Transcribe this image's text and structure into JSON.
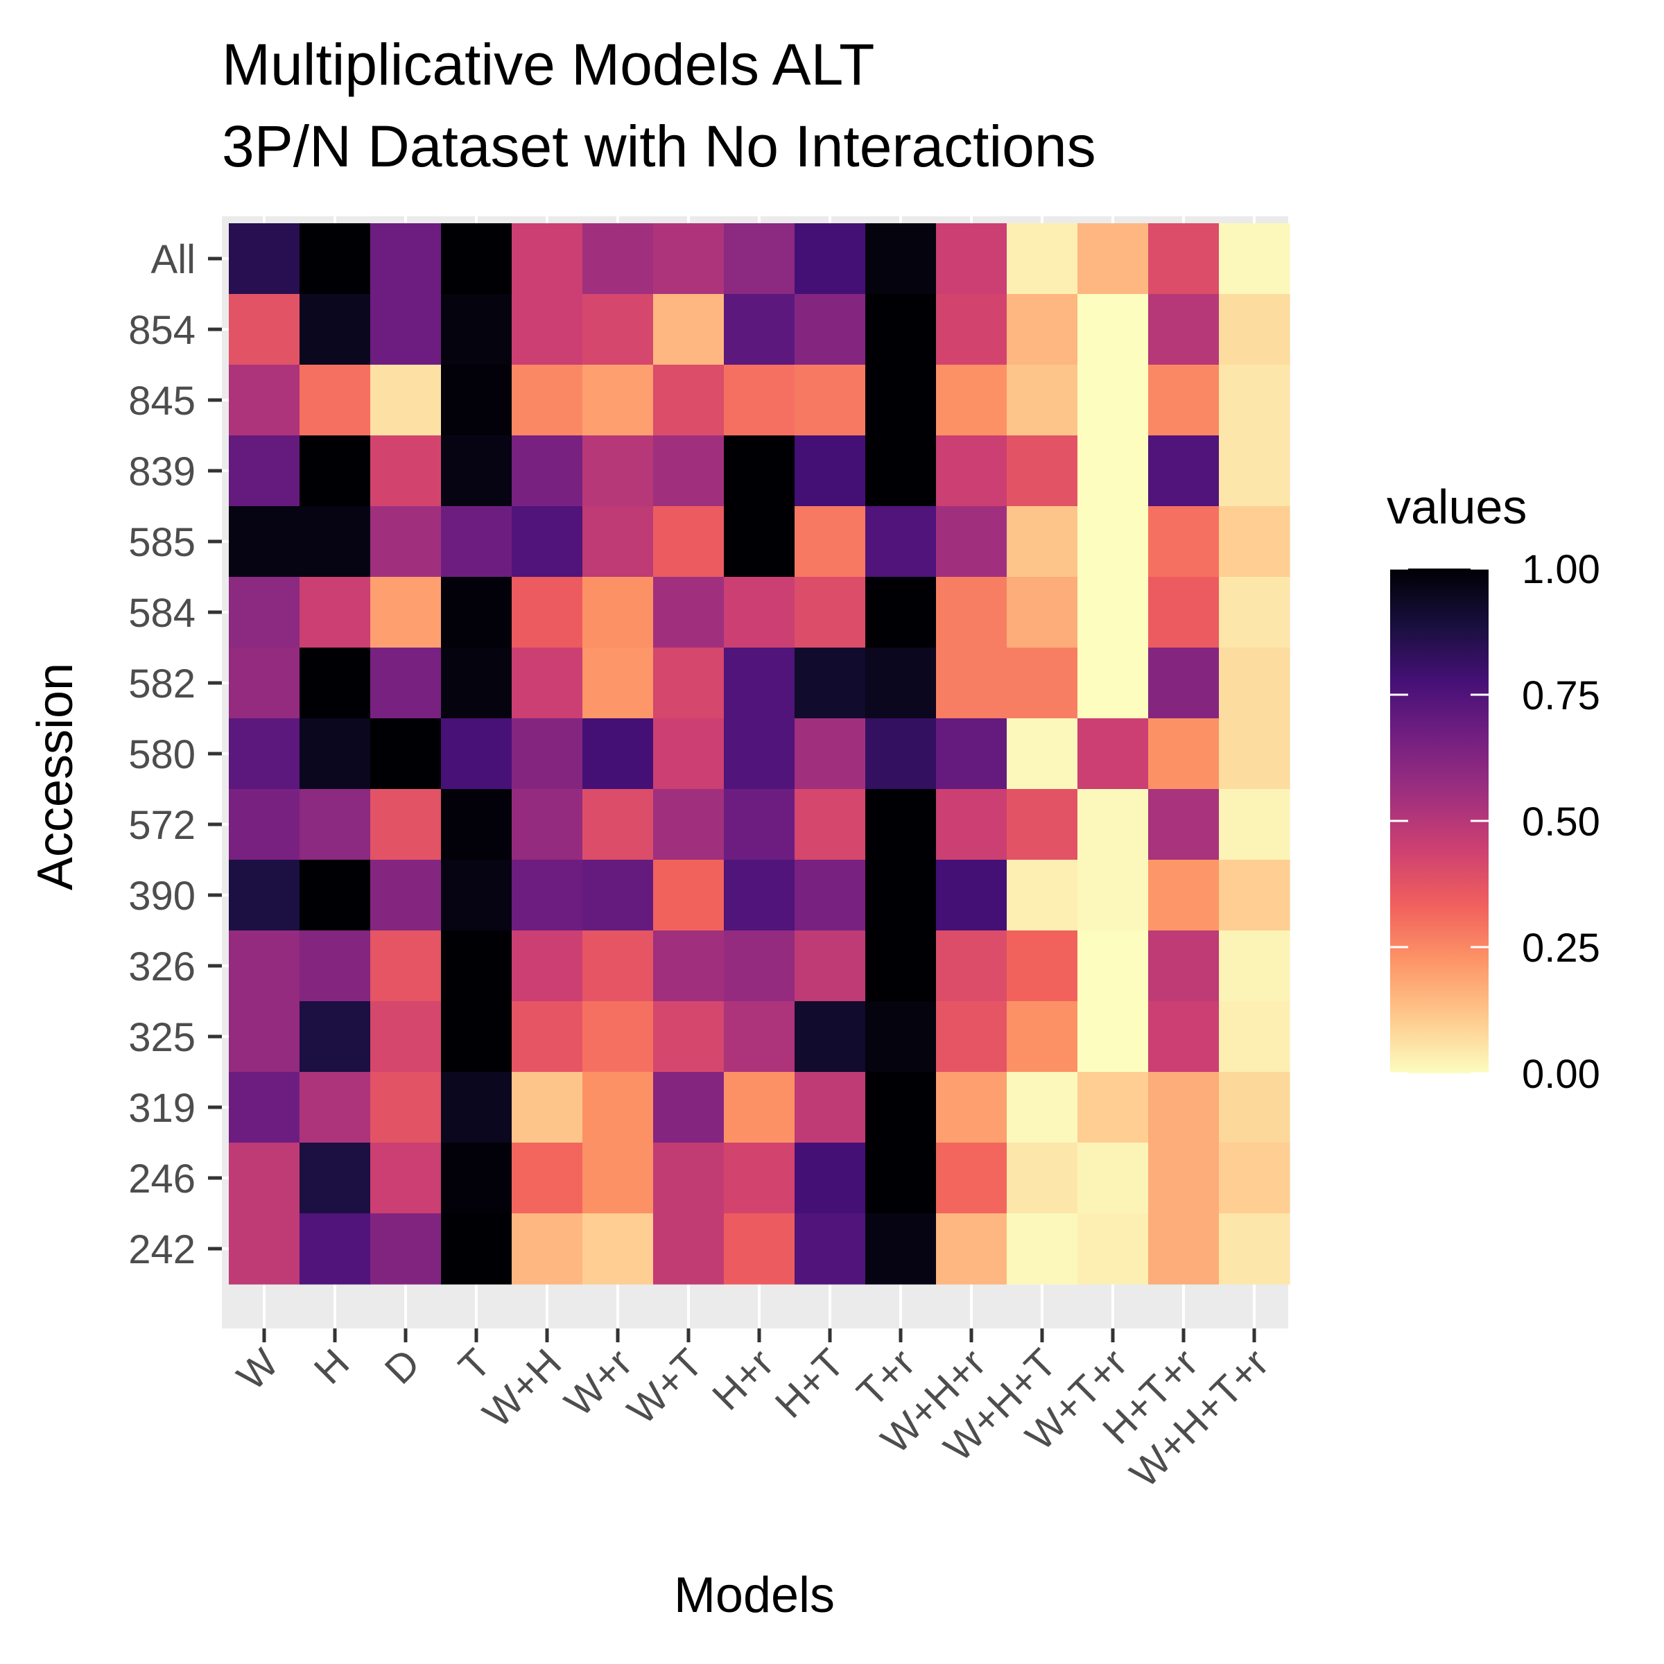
{
  "chart_data": {
    "type": "heatmap",
    "title_lines": [
      "Multiplicative Models ALT",
      "3P/N Dataset with No Interactions"
    ],
    "xlabel": "Models",
    "ylabel": "Accession",
    "x_categories": [
      "W",
      "H",
      "D",
      "T",
      "W+H",
      "W+r",
      "W+T",
      "H+r",
      "H+T",
      "T+r",
      "W+H+r",
      "W+H+T",
      "W+T+r",
      "H+T+r",
      "W+H+T+r"
    ],
    "y_categories": [
      "All",
      "854",
      "845",
      "839",
      "585",
      "584",
      "582",
      "580",
      "572",
      "390",
      "326",
      "325",
      "319",
      "246",
      "242"
    ],
    "values": [
      [
        0.85,
        1.0,
        0.68,
        1.0,
        0.45,
        0.55,
        0.52,
        0.6,
        0.78,
        0.98,
        0.45,
        0.03,
        0.15,
        0.4,
        0.01
      ],
      [
        0.38,
        0.95,
        0.68,
        0.98,
        0.45,
        0.42,
        0.15,
        0.72,
        0.62,
        1.0,
        0.43,
        0.15,
        0.0,
        0.5,
        0.07
      ],
      [
        0.52,
        0.3,
        0.06,
        0.99,
        0.25,
        0.2,
        0.4,
        0.3,
        0.28,
        1.0,
        0.23,
        0.12,
        0.0,
        0.25,
        0.05
      ],
      [
        0.7,
        1.0,
        0.43,
        0.97,
        0.65,
        0.5,
        0.55,
        1.0,
        0.78,
        1.0,
        0.45,
        0.38,
        0.0,
        0.75,
        0.05
      ],
      [
        0.97,
        0.97,
        0.55,
        0.68,
        0.75,
        0.48,
        0.35,
        1.0,
        0.28,
        0.75,
        0.55,
        0.12,
        0.0,
        0.3,
        0.1
      ],
      [
        0.6,
        0.45,
        0.2,
        0.99,
        0.35,
        0.23,
        0.55,
        0.45,
        0.4,
        1.0,
        0.27,
        0.17,
        0.0,
        0.35,
        0.05
      ],
      [
        0.58,
        1.0,
        0.65,
        0.98,
        0.45,
        0.22,
        0.42,
        0.75,
        0.92,
        0.95,
        0.27,
        0.27,
        0.0,
        0.62,
        0.07
      ],
      [
        0.72,
        0.95,
        1.0,
        0.77,
        0.62,
        0.78,
        0.45,
        0.75,
        0.55,
        0.82,
        0.7,
        0.01,
        0.45,
        0.23,
        0.07
      ],
      [
        0.65,
        0.6,
        0.38,
        0.99,
        0.58,
        0.4,
        0.55,
        0.68,
        0.42,
        1.0,
        0.45,
        0.38,
        0.01,
        0.53,
        0.02
      ],
      [
        0.88,
        1.0,
        0.62,
        0.97,
        0.68,
        0.7,
        0.33,
        0.75,
        0.65,
        1.0,
        0.78,
        0.03,
        0.01,
        0.22,
        0.1
      ],
      [
        0.58,
        0.62,
        0.37,
        1.0,
        0.45,
        0.37,
        0.55,
        0.58,
        0.48,
        1.0,
        0.4,
        0.33,
        0.0,
        0.48,
        0.02
      ],
      [
        0.58,
        0.88,
        0.42,
        1.0,
        0.37,
        0.3,
        0.42,
        0.52,
        0.92,
        0.98,
        0.37,
        0.23,
        0.0,
        0.45,
        0.03
      ],
      [
        0.68,
        0.52,
        0.38,
        0.95,
        0.12,
        0.23,
        0.62,
        0.23,
        0.48,
        1.0,
        0.2,
        0.01,
        0.1,
        0.17,
        0.08
      ],
      [
        0.48,
        0.88,
        0.45,
        0.99,
        0.32,
        0.23,
        0.47,
        0.43,
        0.78,
        1.0,
        0.32,
        0.05,
        0.02,
        0.17,
        0.1
      ],
      [
        0.48,
        0.75,
        0.63,
        1.0,
        0.15,
        0.1,
        0.47,
        0.35,
        0.75,
        0.97,
        0.15,
        0.01,
        0.03,
        0.17,
        0.05
      ]
    ],
    "colorbar": {
      "title": "values",
      "range": [
        0,
        1
      ],
      "ticks": [
        "0.00",
        "0.25",
        "0.50",
        "0.75",
        "1.00"
      ],
      "palette": "magma (reversed)",
      "stops": [
        "#fcfdbf",
        "#fec98d",
        "#fd9567",
        "#f1605d",
        "#cd4071",
        "#9e2f7f",
        "#721f81",
        "#451077",
        "#180f3d",
        "#000004"
      ]
    },
    "panel_background": "#ebebeb",
    "grid": true
  }
}
